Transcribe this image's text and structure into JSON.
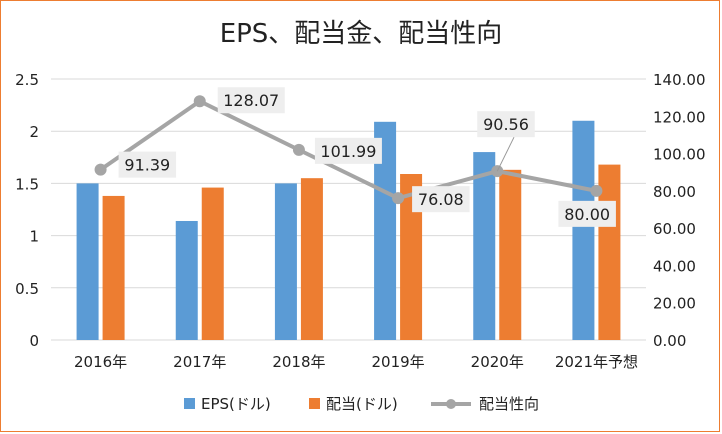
{
  "chart_data": {
    "type": "bar",
    "title": "EPS、配当金、配当性向",
    "categories": [
      "2016年",
      "2017年",
      "2018年",
      "2019年",
      "2020年",
      "2021年予想"
    ],
    "series": [
      {
        "name": "EPS(ドル)",
        "kind": "bar",
        "axis": "left",
        "color": "#5B9BD5",
        "values": [
          1.5,
          1.14,
          1.5,
          2.09,
          1.8,
          2.1
        ]
      },
      {
        "name": "配当(ドル)",
        "kind": "bar",
        "axis": "left",
        "color": "#ED7D31",
        "values": [
          1.38,
          1.46,
          1.55,
          1.59,
          1.63,
          1.68
        ]
      },
      {
        "name": "配当性向",
        "kind": "line",
        "axis": "right",
        "color": "#A5A5A5",
        "values": [
          91.39,
          128.07,
          101.99,
          76.08,
          90.56,
          80.0
        ],
        "labels": [
          "91.39",
          "128.07",
          "101.99",
          "76.08",
          "90.56",
          "80.00"
        ]
      }
    ],
    "y_left": {
      "ylim": [
        0,
        2.5
      ],
      "ticks": [
        "0",
        "0.5",
        "1",
        "1.5",
        "2",
        "2.5"
      ]
    },
    "y_right": {
      "ylim": [
        0,
        140
      ],
      "ticks": [
        "0.00",
        "20.00",
        "40.00",
        "60.00",
        "80.00",
        "100.00",
        "120.00",
        "140.00"
      ]
    },
    "grid": true,
    "legend_position": "bottom"
  }
}
